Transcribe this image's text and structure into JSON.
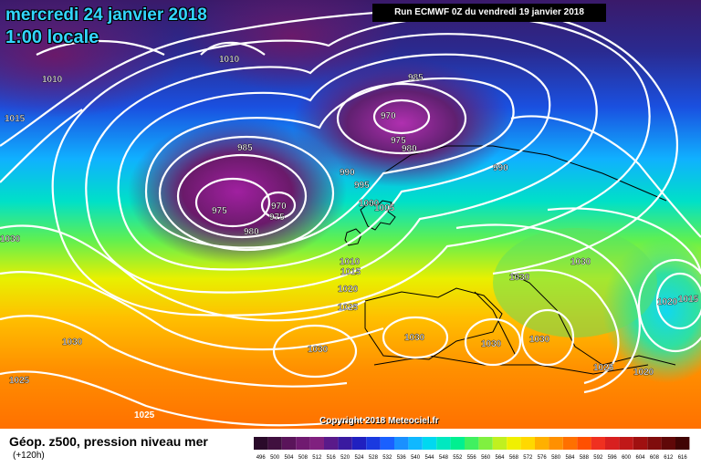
{
  "header": {
    "date_line": "mercredi 24 janvier 2018",
    "time_line": "1:00 locale",
    "run_info": "Run ECMWF 0Z du vendredi 19 janvier 2018"
  },
  "map": {
    "copyright": "Copyright 2018 Meteociel.fr",
    "pressure_labels": [
      "1010",
      "1010",
      "1015",
      "985",
      "970",
      "975",
      "980",
      "985",
      "990",
      "995",
      "1000",
      "1005",
      "975",
      "970",
      "975",
      "980",
      "990",
      "1030",
      "1010",
      "1015",
      "1020",
      "1025",
      "1030",
      "1030",
      "1030",
      "1030",
      "1030",
      "1030",
      "1025",
      "1020",
      "1020",
      "1015",
      "1025",
      "1030"
    ]
  },
  "legend": {
    "title": "Géop. z500, pression niveau mer",
    "subtitle": "(+120h)",
    "scale_values": [
      "496",
      "500",
      "504",
      "508",
      "512",
      "516",
      "520",
      "524",
      "528",
      "532",
      "536",
      "540",
      "544",
      "548",
      "552",
      "556",
      "560",
      "564",
      "568",
      "572",
      "576",
      "580",
      "584",
      "588",
      "592",
      "596",
      "600",
      "604",
      "608",
      "612",
      "616"
    ],
    "scale_colors": [
      "#2a0a2a",
      "#40103f",
      "#5a145a",
      "#701a70",
      "#80207f",
      "#5a1a8a",
      "#3a1aa0",
      "#2020c0",
      "#1a3ae0",
      "#1a60ff",
      "#1a90ff",
      "#10b8ff",
      "#00d8f0",
      "#00e8c0",
      "#00f090",
      "#40f060",
      "#80f040",
      "#c0f020",
      "#f0f000",
      "#ffd800",
      "#ffb000",
      "#ff9000",
      "#ff7000",
      "#ff5000",
      "#f03020",
      "#d82020",
      "#c01818",
      "#a01010",
      "#800c0c",
      "#600808",
      "#400404"
    ]
  }
}
